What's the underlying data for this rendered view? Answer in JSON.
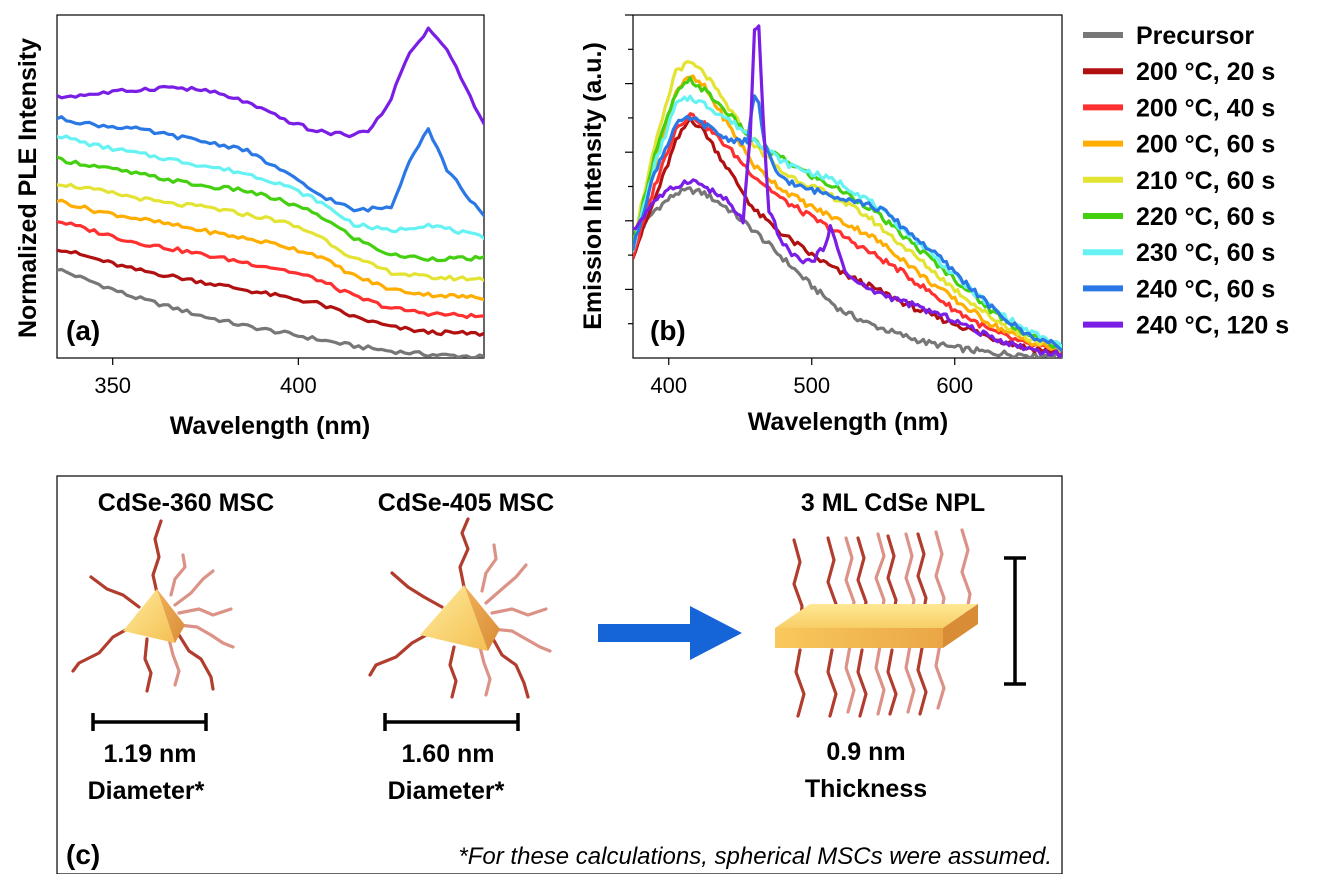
{
  "chart_data": [
    {
      "type": "line",
      "panel": "(a)",
      "xlabel": "Wavelength (nm)",
      "ylabel": "Normalized PLE Intensity",
      "xlim": [
        335,
        450
      ],
      "ylim": [
        0,
        10
      ],
      "xticks": [
        350,
        400
      ],
      "xtick_labels": [
        "350",
        "400"
      ],
      "grid": false,
      "stacked": true,
      "series": [
        {
          "name": "Precursor",
          "color": "#777777",
          "x": [
            335,
            345,
            355,
            365,
            375,
            385,
            395,
            405,
            415,
            425,
            435,
            450
          ],
          "y": [
            2.6,
            2.2,
            1.8,
            1.5,
            1.2,
            0.95,
            0.75,
            0.55,
            0.35,
            0.2,
            0.1,
            0.03
          ]
        },
        {
          "name": "200 °C, 20 s",
          "color": "#b01010",
          "x": [
            335,
            345,
            355,
            365,
            375,
            385,
            395,
            405,
            415,
            425,
            435,
            450
          ],
          "y": [
            3.2,
            2.9,
            2.6,
            2.4,
            2.2,
            2.0,
            1.8,
            1.6,
            1.2,
            0.9,
            0.75,
            0.7
          ]
        },
        {
          "name": "200 °C, 40 s",
          "color": "#ff3030",
          "x": [
            335,
            345,
            355,
            365,
            375,
            385,
            395,
            405,
            415,
            425,
            435,
            450
          ],
          "y": [
            4.0,
            3.7,
            3.4,
            3.2,
            3.0,
            2.8,
            2.6,
            2.3,
            1.8,
            1.45,
            1.3,
            1.2
          ]
        },
        {
          "name": "200 °C, 60 s",
          "color": "#ffad00",
          "x": [
            335,
            345,
            355,
            365,
            375,
            385,
            395,
            405,
            415,
            425,
            435,
            450
          ],
          "y": [
            4.6,
            4.3,
            4.1,
            3.9,
            3.7,
            3.5,
            3.3,
            3.0,
            2.4,
            2.0,
            1.85,
            1.75
          ]
        },
        {
          "name": "210 °C, 60 s",
          "color": "#e3e334",
          "x": [
            335,
            345,
            355,
            365,
            375,
            385,
            395,
            405,
            415,
            425,
            435,
            450
          ],
          "y": [
            5.1,
            4.9,
            4.7,
            4.5,
            4.4,
            4.2,
            4.0,
            3.6,
            2.9,
            2.5,
            2.35,
            2.3
          ]
        },
        {
          "name": "220 °C, 60 s",
          "color": "#44d011",
          "x": [
            335,
            345,
            355,
            365,
            375,
            385,
            395,
            405,
            415,
            425,
            435,
            450
          ],
          "y": [
            5.8,
            5.6,
            5.4,
            5.2,
            5.0,
            4.9,
            4.6,
            4.2,
            3.5,
            3.0,
            2.9,
            2.9
          ]
        },
        {
          "name": "230 °C, 60 s",
          "color": "#66f2f2",
          "x": [
            335,
            345,
            355,
            365,
            375,
            385,
            395,
            405,
            415,
            425,
            435,
            450
          ],
          "y": [
            6.5,
            6.2,
            6.0,
            5.8,
            5.6,
            5.4,
            5.1,
            4.6,
            3.9,
            3.7,
            3.9,
            3.5
          ]
        },
        {
          "name": "240 °C, 60 s",
          "color": "#2a78e6",
          "x": [
            335,
            345,
            355,
            365,
            375,
            385,
            395,
            405,
            415,
            425,
            430,
            435,
            440,
            450
          ],
          "y": [
            7.0,
            6.8,
            6.7,
            6.5,
            6.3,
            6.1,
            5.5,
            4.8,
            4.3,
            4.4,
            5.8,
            6.7,
            5.5,
            4.1
          ]
        },
        {
          "name": "240 °C, 120 s",
          "color": "#7a1ee6",
          "x": [
            335,
            345,
            355,
            365,
            375,
            385,
            395,
            405,
            415,
            420,
            425,
            430,
            435,
            440,
            445,
            450
          ],
          "y": [
            7.6,
            7.7,
            7.8,
            7.9,
            7.8,
            7.5,
            7.0,
            6.6,
            6.5,
            6.7,
            7.6,
            8.9,
            9.6,
            9.0,
            7.9,
            6.8
          ]
        }
      ]
    },
    {
      "type": "line",
      "panel": "(b)",
      "xlabel": "Wavelength (nm)",
      "ylabel": "Emission Intensity (a.u.)",
      "xlim": [
        375,
        675
      ],
      "ylim": [
        0,
        10
      ],
      "xticks": [
        400,
        500,
        600
      ],
      "xtick_labels": [
        "400",
        "500",
        "600"
      ],
      "grid": false,
      "series": [
        {
          "name": "Precursor",
          "color": "#777777",
          "x": [
            375,
            390,
            405,
            415,
            425,
            440,
            460,
            480,
            500,
            520,
            540,
            560,
            580,
            600,
            625,
            650,
            675
          ],
          "y": [
            3.4,
            4.3,
            4.8,
            4.9,
            4.8,
            4.4,
            3.7,
            2.9,
            2.1,
            1.4,
            1.0,
            0.7,
            0.45,
            0.3,
            0.15,
            0.1,
            0.05
          ]
        },
        {
          "name": "200 °C, 20 s",
          "color": "#b01010",
          "x": [
            375,
            390,
            405,
            415,
            425,
            440,
            460,
            480,
            500,
            520,
            540,
            560,
            580,
            600,
            625,
            650,
            675
          ],
          "y": [
            3.0,
            4.6,
            6.3,
            7.0,
            6.6,
            5.6,
            4.3,
            3.6,
            3.0,
            2.5,
            2.1,
            1.7,
            1.3,
            1.0,
            0.6,
            0.3,
            0.15
          ]
        },
        {
          "name": "200 °C, 40 s",
          "color": "#ff3030",
          "x": [
            375,
            390,
            405,
            415,
            425,
            440,
            460,
            480,
            500,
            520,
            540,
            560,
            580,
            600,
            625,
            650,
            675
          ],
          "y": [
            3.0,
            5.0,
            6.7,
            7.1,
            6.8,
            6.2,
            5.3,
            4.6,
            4.1,
            3.6,
            3.1,
            2.6,
            2.0,
            1.4,
            0.8,
            0.4,
            0.2
          ]
        },
        {
          "name": "200 °C, 60 s",
          "color": "#ffad00",
          "x": [
            375,
            390,
            405,
            415,
            425,
            440,
            460,
            480,
            500,
            520,
            540,
            560,
            580,
            600,
            625,
            650,
            675
          ],
          "y": [
            3.2,
            5.6,
            7.8,
            8.2,
            7.9,
            6.9,
            5.6,
            4.9,
            4.4,
            4.0,
            3.6,
            3.0,
            2.3,
            1.7,
            1.0,
            0.5,
            0.2
          ]
        },
        {
          "name": "210 °C, 60 s",
          "color": "#e3e334",
          "x": [
            375,
            390,
            405,
            415,
            425,
            440,
            460,
            480,
            500,
            520,
            540,
            560,
            580,
            600,
            625,
            650,
            675
          ],
          "y": [
            3.4,
            6.1,
            8.4,
            8.6,
            8.3,
            7.4,
            6.2,
            5.4,
            5.0,
            4.6,
            4.1,
            3.4,
            2.7,
            2.0,
            1.2,
            0.6,
            0.25
          ]
        },
        {
          "name": "220 °C, 60 s",
          "color": "#44d011",
          "x": [
            375,
            390,
            405,
            415,
            425,
            440,
            460,
            480,
            500,
            520,
            540,
            560,
            580,
            600,
            625,
            650,
            675
          ],
          "y": [
            3.3,
            5.9,
            7.7,
            8.1,
            7.8,
            7.2,
            6.3,
            5.8,
            5.3,
            4.9,
            4.4,
            3.7,
            3.0,
            2.3,
            1.4,
            0.7,
            0.3
          ]
        },
        {
          "name": "230 °C, 60 s",
          "color": "#66f2f2",
          "x": [
            375,
            390,
            405,
            415,
            425,
            440,
            460,
            480,
            500,
            520,
            540,
            560,
            580,
            600,
            625,
            650,
            675
          ],
          "y": [
            3.2,
            5.6,
            7.4,
            7.6,
            7.4,
            7.0,
            6.4,
            5.7,
            5.4,
            5.1,
            4.6,
            3.9,
            3.2,
            2.4,
            1.5,
            0.8,
            0.35
          ]
        },
        {
          "name": "240 °C, 60 s",
          "color": "#2a78e6",
          "x": [
            375,
            390,
            405,
            415,
            425,
            440,
            455,
            460,
            463,
            467,
            475,
            490,
            510,
            530,
            550,
            570,
            590,
            610,
            630,
            650,
            675
          ],
          "y": [
            3.2,
            5.4,
            6.8,
            7.0,
            6.8,
            6.4,
            6.3,
            7.7,
            7.4,
            6.2,
            5.4,
            5.0,
            4.8,
            4.6,
            4.3,
            3.6,
            2.9,
            2.1,
            1.3,
            0.7,
            0.3
          ]
        },
        {
          "name": "240 °C, 120 s",
          "color": "#7a1ee6",
          "x": [
            375,
            390,
            405,
            415,
            425,
            440,
            452,
            457,
            460,
            463,
            466,
            470,
            480,
            490,
            500,
            508,
            513,
            518,
            525,
            540,
            560,
            580,
            600,
            620,
            640,
            660,
            675
          ],
          "y": [
            3.7,
            4.6,
            5.0,
            5.2,
            5.0,
            4.6,
            4.0,
            6.5,
            9.5,
            9.6,
            7.0,
            4.3,
            3.3,
            2.9,
            2.8,
            3.2,
            3.8,
            3.2,
            2.4,
            2.0,
            1.7,
            1.4,
            1.1,
            0.7,
            0.4,
            0.2,
            0.1
          ]
        }
      ]
    }
  ],
  "figure_text": {
    "panel_a_label": "(a)",
    "panel_b_label": "(b)",
    "panel_c_label": "(c)",
    "msc360_title": "CdSe-360 MSC",
    "msc405_title": "CdSe-405 MSC",
    "npl_title": "3 ML CdSe NPL",
    "msc360_size": "1.19 nm",
    "msc360_size_label": "Diameter*",
    "msc405_size": "1.60 nm",
    "msc405_size_label": "Diameter*",
    "npl_size": "0.9 nm",
    "npl_size_label": "Thickness",
    "footnote": "*For these calculations, spherical MSCs were assumed."
  },
  "colors": {
    "arrow": "#1565d8",
    "ligand_dark": "#b13d2e",
    "ligand_light": "#dc9287",
    "crystal_light": "#ffe08a",
    "crystal_dark": "#e8a94e"
  }
}
